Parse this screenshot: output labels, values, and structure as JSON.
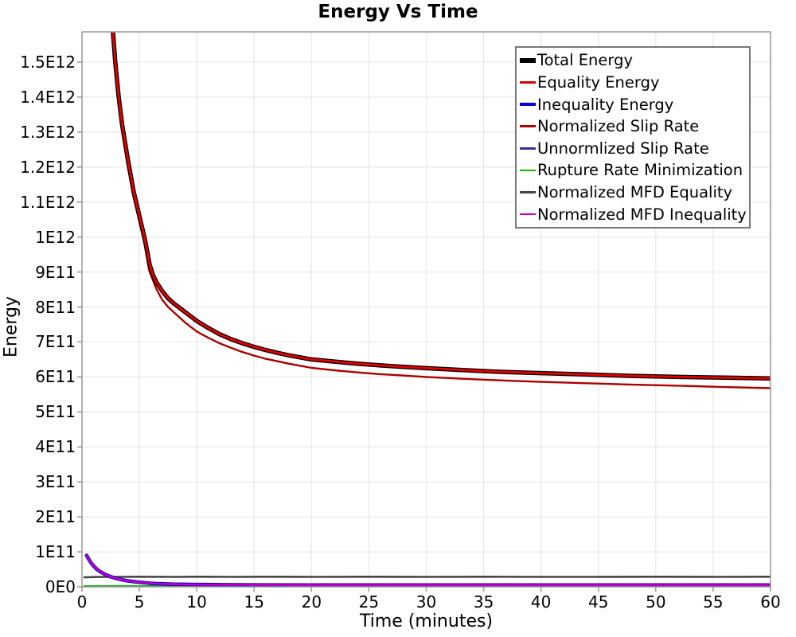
{
  "chart_data": {
    "type": "line",
    "title": "Energy Vs Time",
    "xlabel": "Time (minutes)",
    "ylabel": "Energy",
    "x_range": [
      0,
      60
    ],
    "y_range": [
      0,
      1500000000000
    ],
    "values_unit": "1e11",
    "grid": true,
    "legend_position": "top-right",
    "x_ticks": [
      0,
      5,
      10,
      15,
      20,
      25,
      30,
      35,
      40,
      45,
      50,
      55,
      60
    ],
    "y_ticks": [
      {
        "value": 0,
        "label": "0E0"
      },
      {
        "value": 1,
        "label": "1E11"
      },
      {
        "value": 2,
        "label": "2E11"
      },
      {
        "value": 3,
        "label": "3E11"
      },
      {
        "value": 4,
        "label": "4E11"
      },
      {
        "value": 5,
        "label": "5E11"
      },
      {
        "value": 6,
        "label": "6E11"
      },
      {
        "value": 7,
        "label": "7E11"
      },
      {
        "value": 8,
        "label": "8E11"
      },
      {
        "value": 9,
        "label": "9E11"
      },
      {
        "value": 10,
        "label": "1E12"
      },
      {
        "value": 11,
        "label": "1.1E12"
      },
      {
        "value": 12,
        "label": "1.2E12"
      },
      {
        "value": 13,
        "label": "1.3E12"
      },
      {
        "value": 14,
        "label": "1.4E12"
      },
      {
        "value": 15,
        "label": "1.5E12"
      }
    ],
    "series": [
      {
        "name": "Total Energy",
        "color": "#000000",
        "width": 5.5,
        "points": [
          [
            2.55,
            16.3
          ],
          [
            2.7,
            15.87
          ],
          [
            2.9,
            15.0
          ],
          [
            3.2,
            14.0
          ],
          [
            3.5,
            13.2
          ],
          [
            3.8,
            12.6
          ],
          [
            4.0,
            12.2
          ],
          [
            4.5,
            11.3
          ],
          [
            5.0,
            10.6
          ],
          [
            5.5,
            9.9
          ],
          [
            5.9,
            9.2
          ],
          [
            6.2,
            8.9
          ],
          [
            6.5,
            8.7
          ],
          [
            7,
            8.45
          ],
          [
            7.5,
            8.25
          ],
          [
            8,
            8.1
          ],
          [
            9,
            7.85
          ],
          [
            10,
            7.6
          ],
          [
            11,
            7.4
          ],
          [
            12,
            7.22
          ],
          [
            13,
            7.08
          ],
          [
            14,
            6.96
          ],
          [
            15,
            6.86
          ],
          [
            16,
            6.77
          ],
          [
            17,
            6.69
          ],
          [
            18,
            6.62
          ],
          [
            19,
            6.56
          ],
          [
            20,
            6.5
          ],
          [
            22,
            6.44
          ],
          [
            24,
            6.38
          ],
          [
            26,
            6.33
          ],
          [
            28,
            6.29
          ],
          [
            30,
            6.25
          ],
          [
            33,
            6.2
          ],
          [
            36,
            6.15
          ],
          [
            40,
            6.11
          ],
          [
            44,
            6.07
          ],
          [
            48,
            6.03
          ],
          [
            52,
            6.0
          ],
          [
            56,
            5.98
          ],
          [
            60,
            5.96
          ]
        ]
      },
      {
        "name": "Equality Energy",
        "color": "#dd0000",
        "width": 3.0,
        "points": [
          [
            2.55,
            16.3
          ],
          [
            2.7,
            15.87
          ],
          [
            2.9,
            15.0
          ],
          [
            3.2,
            14.0
          ],
          [
            3.5,
            13.2
          ],
          [
            3.8,
            12.6
          ],
          [
            4.0,
            12.2
          ],
          [
            4.5,
            11.3
          ],
          [
            5.0,
            10.6
          ],
          [
            5.5,
            9.9
          ],
          [
            5.9,
            9.2
          ],
          [
            6.2,
            8.9
          ],
          [
            6.5,
            8.7
          ],
          [
            7,
            8.45
          ],
          [
            7.5,
            8.25
          ],
          [
            8,
            8.1
          ],
          [
            9,
            7.85
          ],
          [
            10,
            7.6
          ],
          [
            11,
            7.4
          ],
          [
            12,
            7.22
          ],
          [
            13,
            7.08
          ],
          [
            14,
            6.96
          ],
          [
            15,
            6.86
          ],
          [
            16,
            6.77
          ],
          [
            17,
            6.69
          ],
          [
            18,
            6.62
          ],
          [
            19,
            6.56
          ],
          [
            20,
            6.5
          ],
          [
            22,
            6.44
          ],
          [
            24,
            6.38
          ],
          [
            26,
            6.33
          ],
          [
            28,
            6.29
          ],
          [
            30,
            6.25
          ],
          [
            33,
            6.2
          ],
          [
            36,
            6.15
          ],
          [
            40,
            6.11
          ],
          [
            44,
            6.07
          ],
          [
            48,
            6.03
          ],
          [
            52,
            6.0
          ],
          [
            56,
            5.98
          ],
          [
            60,
            5.96
          ]
        ]
      },
      {
        "name": "Inequality Energy",
        "color": "#0000cc",
        "width": 4.5,
        "points": [
          [
            0.4,
            0.9
          ],
          [
            0.6,
            0.78
          ],
          [
            0.8,
            0.68
          ],
          [
            1.0,
            0.6
          ],
          [
            1.3,
            0.5
          ],
          [
            1.6,
            0.43
          ],
          [
            2.0,
            0.36
          ],
          [
            2.5,
            0.29
          ],
          [
            3.0,
            0.24
          ],
          [
            3.5,
            0.2
          ],
          [
            4.0,
            0.17
          ],
          [
            4.5,
            0.15
          ],
          [
            5.0,
            0.13
          ],
          [
            6.0,
            0.1
          ],
          [
            7.0,
            0.085
          ],
          [
            8.0,
            0.075
          ],
          [
            9.0,
            0.07
          ],
          [
            10,
            0.065
          ],
          [
            12,
            0.06
          ],
          [
            15,
            0.055
          ],
          [
            20,
            0.05
          ],
          [
            25,
            0.05
          ],
          [
            30,
            0.05
          ],
          [
            40,
            0.05
          ],
          [
            50,
            0.05
          ],
          [
            60,
            0.05
          ]
        ]
      },
      {
        "name": "Normalized Slip Rate",
        "color": "#aa0000",
        "width": 2.4,
        "points": [
          [
            2.5,
            16.3
          ],
          [
            2.65,
            15.87
          ],
          [
            2.85,
            15.0
          ],
          [
            3.15,
            14.0
          ],
          [
            3.45,
            13.2
          ],
          [
            3.95,
            12.1
          ],
          [
            4.45,
            11.2
          ],
          [
            4.95,
            10.5
          ],
          [
            5.45,
            9.8
          ],
          [
            5.85,
            9.05
          ],
          [
            6.2,
            8.75
          ],
          [
            6.5,
            8.5
          ],
          [
            7,
            8.2
          ],
          [
            7.5,
            8.0
          ],
          [
            8,
            7.85
          ],
          [
            9,
            7.55
          ],
          [
            10,
            7.3
          ],
          [
            11,
            7.12
          ],
          [
            12,
            6.96
          ],
          [
            13,
            6.83
          ],
          [
            14,
            6.71
          ],
          [
            15,
            6.61
          ],
          [
            16,
            6.52
          ],
          [
            17,
            6.45
          ],
          [
            18,
            6.38
          ],
          [
            19,
            6.32
          ],
          [
            20,
            6.26
          ],
          [
            22,
            6.19
          ],
          [
            24,
            6.13
          ],
          [
            26,
            6.08
          ],
          [
            28,
            6.04
          ],
          [
            30,
            6.0
          ],
          [
            33,
            5.95
          ],
          [
            36,
            5.91
          ],
          [
            40,
            5.86
          ],
          [
            44,
            5.82
          ],
          [
            48,
            5.78
          ],
          [
            52,
            5.75
          ],
          [
            56,
            5.71
          ],
          [
            60,
            5.68
          ]
        ]
      },
      {
        "name": "Unnormlized Slip Rate",
        "color": "#3030a0",
        "width": 2.0,
        "points": [
          [
            0.4,
            0.9
          ],
          [
            0.6,
            0.78
          ],
          [
            0.8,
            0.68
          ],
          [
            1.0,
            0.6
          ],
          [
            1.3,
            0.5
          ],
          [
            1.6,
            0.43
          ],
          [
            2.0,
            0.36
          ],
          [
            2.5,
            0.29
          ],
          [
            3.0,
            0.24
          ],
          [
            3.5,
            0.2
          ],
          [
            4.0,
            0.17
          ],
          [
            4.5,
            0.15
          ],
          [
            5.0,
            0.13
          ],
          [
            6.0,
            0.1
          ],
          [
            7.0,
            0.085
          ],
          [
            8.0,
            0.075
          ],
          [
            9.0,
            0.07
          ],
          [
            10,
            0.065
          ],
          [
            12,
            0.06
          ],
          [
            15,
            0.055
          ],
          [
            20,
            0.05
          ],
          [
            25,
            0.05
          ],
          [
            30,
            0.05
          ],
          [
            40,
            0.05
          ],
          [
            50,
            0.05
          ],
          [
            60,
            0.05
          ]
        ]
      },
      {
        "name": "Rupture Rate Minimization",
        "color": "#00b400",
        "width": 2.2,
        "points": [
          [
            0.2,
            0.02
          ],
          [
            10,
            0.02
          ],
          [
            20,
            0.02
          ],
          [
            30,
            0.02
          ],
          [
            40,
            0.02
          ],
          [
            50,
            0.02
          ],
          [
            60,
            0.02
          ]
        ]
      },
      {
        "name": "Normalized MFD Equality",
        "color": "#454545",
        "width": 2.6,
        "points": [
          [
            0.2,
            0.27
          ],
          [
            1,
            0.28
          ],
          [
            2,
            0.285
          ],
          [
            3,
            0.285
          ],
          [
            5,
            0.29
          ],
          [
            8,
            0.285
          ],
          [
            10,
            0.29
          ],
          [
            13,
            0.285
          ],
          [
            16,
            0.29
          ],
          [
            20,
            0.285
          ],
          [
            25,
            0.29
          ],
          [
            30,
            0.285
          ],
          [
            35,
            0.29
          ],
          [
            40,
            0.285
          ],
          [
            45,
            0.285
          ],
          [
            50,
            0.29
          ],
          [
            55,
            0.285
          ],
          [
            60,
            0.29
          ]
        ]
      },
      {
        "name": "Normalized MFD Inequality",
        "color": "#c400c4",
        "width": 2.6,
        "points": [
          [
            0.4,
            0.9
          ],
          [
            0.6,
            0.78
          ],
          [
            0.8,
            0.68
          ],
          [
            1.0,
            0.6
          ],
          [
            1.3,
            0.5
          ],
          [
            1.6,
            0.43
          ],
          [
            2.0,
            0.36
          ],
          [
            2.5,
            0.29
          ],
          [
            3.0,
            0.24
          ],
          [
            3.5,
            0.2
          ],
          [
            4.0,
            0.17
          ],
          [
            4.5,
            0.15
          ],
          [
            5.0,
            0.13
          ],
          [
            6.0,
            0.1
          ],
          [
            7.0,
            0.085
          ],
          [
            8.0,
            0.075
          ],
          [
            9.0,
            0.07
          ],
          [
            10,
            0.065
          ],
          [
            12,
            0.06
          ],
          [
            15,
            0.055
          ],
          [
            20,
            0.05
          ],
          [
            25,
            0.05
          ],
          [
            30,
            0.05
          ],
          [
            40,
            0.05
          ],
          [
            50,
            0.05
          ],
          [
            60,
            0.05
          ]
        ]
      }
    ],
    "draw_order": [
      5,
      6,
      2,
      4,
      7,
      3,
      0,
      1
    ]
  }
}
